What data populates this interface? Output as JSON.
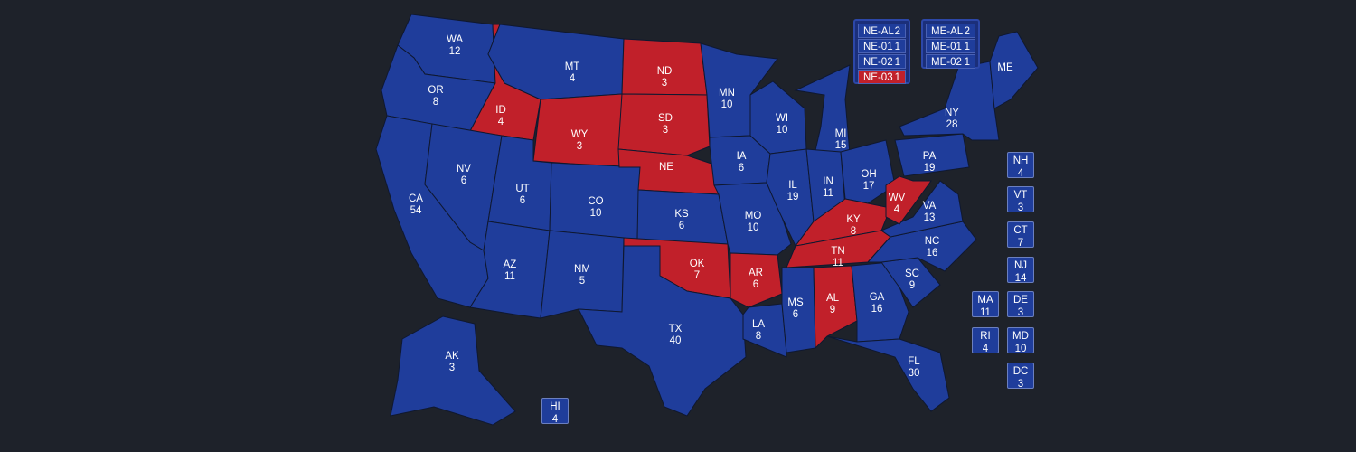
{
  "colors": {
    "background": "#1e222a",
    "blue": "#1f3d9b",
    "red": "#c1202a",
    "border": "#0f1830"
  },
  "states": [
    {
      "id": "WA",
      "votes": "12",
      "color": "blue"
    },
    {
      "id": "OR",
      "votes": "8",
      "color": "blue"
    },
    {
      "id": "CA",
      "votes": "54",
      "color": "blue"
    },
    {
      "id": "ID",
      "votes": "4",
      "color": "red"
    },
    {
      "id": "NV",
      "votes": "6",
      "color": "blue"
    },
    {
      "id": "MT",
      "votes": "4",
      "color": "blue"
    },
    {
      "id": "WY",
      "votes": "3",
      "color": "red"
    },
    {
      "id": "UT",
      "votes": "6",
      "color": "blue"
    },
    {
      "id": "AZ",
      "votes": "11",
      "color": "blue"
    },
    {
      "id": "CO",
      "votes": "10",
      "color": "blue"
    },
    {
      "id": "NM",
      "votes": "5",
      "color": "blue"
    },
    {
      "id": "ND",
      "votes": "3",
      "color": "red"
    },
    {
      "id": "SD",
      "votes": "3",
      "color": "red"
    },
    {
      "id": "NE",
      "votes": "",
      "color": "red"
    },
    {
      "id": "KS",
      "votes": "6",
      "color": "blue"
    },
    {
      "id": "OK",
      "votes": "7",
      "color": "red"
    },
    {
      "id": "TX",
      "votes": "40",
      "color": "blue"
    },
    {
      "id": "MN",
      "votes": "10",
      "color": "blue"
    },
    {
      "id": "IA",
      "votes": "6",
      "color": "blue"
    },
    {
      "id": "MO",
      "votes": "10",
      "color": "blue"
    },
    {
      "id": "AR",
      "votes": "6",
      "color": "red"
    },
    {
      "id": "LA",
      "votes": "8",
      "color": "blue"
    },
    {
      "id": "WI",
      "votes": "10",
      "color": "blue"
    },
    {
      "id": "IL",
      "votes": "19",
      "color": "blue"
    },
    {
      "id": "MI",
      "votes": "15",
      "color": "blue"
    },
    {
      "id": "IN",
      "votes": "11",
      "color": "blue"
    },
    {
      "id": "OH",
      "votes": "17",
      "color": "blue"
    },
    {
      "id": "KY",
      "votes": "8",
      "color": "red"
    },
    {
      "id": "TN",
      "votes": "11",
      "color": "red"
    },
    {
      "id": "MS",
      "votes": "6",
      "color": "blue"
    },
    {
      "id": "AL",
      "votes": "9",
      "color": "red"
    },
    {
      "id": "GA",
      "votes": "16",
      "color": "blue"
    },
    {
      "id": "FL",
      "votes": "30",
      "color": "blue"
    },
    {
      "id": "SC",
      "votes": "9",
      "color": "blue"
    },
    {
      "id": "NC",
      "votes": "16",
      "color": "blue"
    },
    {
      "id": "VA",
      "votes": "13",
      "color": "blue"
    },
    {
      "id": "WV",
      "votes": "4",
      "color": "red"
    },
    {
      "id": "PA",
      "votes": "19",
      "color": "blue"
    },
    {
      "id": "NY",
      "votes": "28",
      "color": "blue"
    },
    {
      "id": "ME",
      "votes": "",
      "color": "blue"
    },
    {
      "id": "AK",
      "votes": "3",
      "color": "blue"
    }
  ],
  "small_states": [
    {
      "id": "NH",
      "votes": "4",
      "color": "blue"
    },
    {
      "id": "VT",
      "votes": "3",
      "color": "blue"
    },
    {
      "id": "CT",
      "votes": "7",
      "color": "blue"
    },
    {
      "id": "NJ",
      "votes": "14",
      "color": "blue"
    },
    {
      "id": "MA",
      "votes": "11",
      "color": "blue"
    },
    {
      "id": "DE",
      "votes": "3",
      "color": "blue"
    },
    {
      "id": "RI",
      "votes": "4",
      "color": "blue"
    },
    {
      "id": "MD",
      "votes": "10",
      "color": "blue"
    },
    {
      "id": "DC",
      "votes": "3",
      "color": "blue"
    },
    {
      "id": "HI",
      "votes": "4",
      "color": "blue"
    }
  ],
  "districts": {
    "nebraska": [
      {
        "label": "NE-AL",
        "votes": "2",
        "color": "blue"
      },
      {
        "label": "NE-01",
        "votes": "1",
        "color": "blue"
      },
      {
        "label": "NE-02",
        "votes": "1",
        "color": "blue"
      },
      {
        "label": "NE-03",
        "votes": "1",
        "color": "red"
      }
    ],
    "maine": [
      {
        "label": "ME-AL",
        "votes": "2",
        "color": "blue"
      },
      {
        "label": "ME-01",
        "votes": "1",
        "color": "blue"
      },
      {
        "label": "ME-02",
        "votes": "1",
        "color": "blue"
      }
    ]
  }
}
